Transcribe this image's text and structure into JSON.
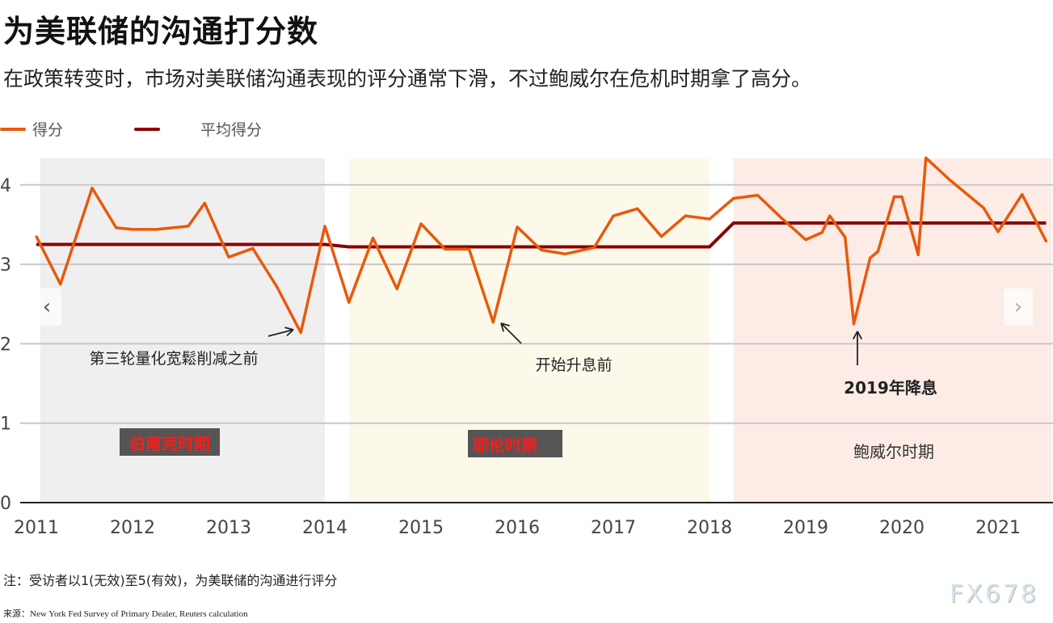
{
  "title": "为美联储的沟通打分数",
  "subtitle": "在政策转变时，市场对美联储沟通表现的评分通常下滑，不过鲍威尔在危机时期拿了高分。",
  "note": "注：受访者以1(无效)至5(有效)，为美联储的沟通进行评分",
  "source": "来源：New York Fed Survey of Primary Dealer, Reuters calculation",
  "watermark": "FX678",
  "nav": {
    "prev": "‹",
    "next": "›"
  },
  "chart_data": {
    "type": "line",
    "xlabel": "",
    "ylabel": "",
    "xlim": [
      2011,
      2021.56
    ],
    "ylim": [
      0,
      4.35
    ],
    "x_ticks": [
      "2011",
      "2012",
      "2013",
      "2014",
      "2015",
      "2016",
      "2017",
      "2018",
      "2019",
      "2020",
      "2021"
    ],
    "y_ticks": [
      "0",
      "1",
      "2",
      "3",
      "4"
    ],
    "grid": "horizontal",
    "legend_position": "top-left",
    "colors": {
      "score": "#e8590c",
      "average": "#8b0000",
      "bernanke": "#efefef",
      "yellen": "#fdf9ea",
      "powell": "#fdece6"
    },
    "series": [
      {
        "name": "得分",
        "x": [
          2011.0,
          2011.25,
          2011.58,
          2011.83,
          2012.0,
          2012.25,
          2012.58,
          2012.75,
          2013.0,
          2013.25,
          2013.5,
          2013.75,
          2014.0,
          2014.25,
          2014.5,
          2014.75,
          2015.0,
          2015.25,
          2015.5,
          2015.75,
          2016.0,
          2016.25,
          2016.5,
          2016.8,
          2017.0,
          2017.25,
          2017.5,
          2017.75,
          2018.0,
          2018.25,
          2018.5,
          2018.75,
          2019.0,
          2019.17,
          2019.25,
          2019.41,
          2019.5,
          2019.67,
          2019.75,
          2019.92,
          2020.0,
          2020.17,
          2020.25,
          2020.5,
          2020.85,
          2021.0,
          2021.25,
          2021.5
        ],
        "values": [
          3.35,
          2.75,
          3.96,
          3.46,
          3.44,
          3.44,
          3.48,
          3.77,
          3.09,
          3.2,
          2.72,
          2.14,
          3.48,
          2.52,
          3.33,
          2.69,
          3.51,
          3.19,
          3.19,
          2.27,
          3.47,
          3.18,
          3.13,
          3.21,
          3.61,
          3.7,
          3.35,
          3.61,
          3.57,
          3.83,
          3.87,
          3.58,
          3.31,
          3.4,
          3.61,
          3.34,
          2.25,
          3.08,
          3.16,
          3.85,
          3.85,
          3.12,
          4.34,
          4.06,
          3.71,
          3.41,
          3.88,
          3.29
        ]
      },
      {
        "name": "平均得分",
        "x": [
          2011.0,
          2014.0,
          2014.25,
          2018.0,
          2018.25,
          2021.5
        ],
        "values": [
          3.25,
          3.25,
          3.22,
          3.22,
          3.52,
          3.52
        ]
      }
    ],
    "periods": [
      {
        "label": "伯南克时期",
        "start": 2011.04,
        "end": 2014.0
      },
      {
        "label": "耶伦时期",
        "start": 2014.25,
        "end": 2018.0
      },
      {
        "label": "鲍威尔时期",
        "start": 2018.25,
        "end": 2021.56
      }
    ],
    "annotations": [
      {
        "text": "第三轮量化宽鬆削减之前",
        "x": 2013.75,
        "y": 2.14
      },
      {
        "text": "开始升息前",
        "x": 2015.75,
        "y": 2.27
      },
      {
        "text": "2019年降息",
        "x": 2019.5,
        "y": 2.25
      }
    ]
  }
}
